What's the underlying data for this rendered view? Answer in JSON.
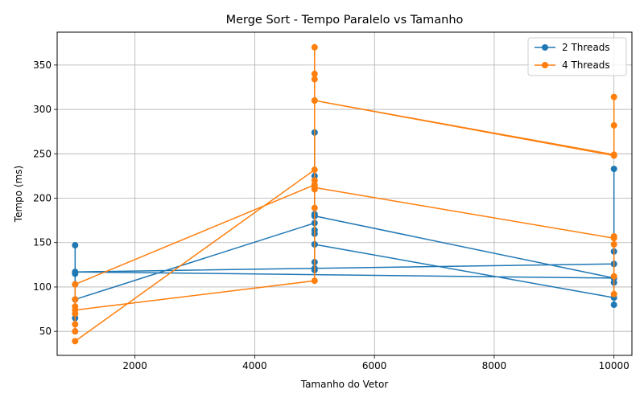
{
  "chart_data": {
    "type": "line",
    "title": "Merge Sort - Tempo Paralelo vs Tamanho",
    "xlabel": "Tamanho do Vetor",
    "ylabel": "Tempo (ms)",
    "xlim": [
      700,
      10300
    ],
    "ylim": [
      23,
      387
    ],
    "xticks": [
      2000,
      4000,
      6000,
      8000,
      10000
    ],
    "yticks": [
      50,
      100,
      150,
      200,
      250,
      300,
      350
    ],
    "grid": true,
    "legend_position": "top-right",
    "series": [
      {
        "name": "2 Threads",
        "color": "#1f77b4",
        "points": [
          [
            1000,
            147
          ],
          [
            1000,
            115
          ],
          [
            1000,
            103
          ],
          [
            1000,
            86
          ],
          [
            1000,
            65
          ],
          [
            1000,
            50
          ],
          [
            1000,
            86
          ],
          [
            5000,
            172
          ],
          [
            5000,
            180
          ],
          [
            5000,
            274
          ],
          [
            5000,
            225
          ],
          [
            5000,
            182
          ],
          [
            5000,
            164
          ],
          [
            5000,
            160
          ],
          [
            5000,
            148
          ],
          [
            5000,
            128
          ],
          [
            5000,
            119
          ],
          [
            5000,
            148
          ],
          [
            10000,
            88
          ],
          [
            10000,
            80
          ],
          [
            10000,
            233
          ],
          [
            10000,
            140
          ],
          [
            10000,
            105
          ],
          [
            10000,
            110
          ],
          [
            1000,
            117
          ],
          [
            5000,
            121
          ],
          [
            10000,
            126
          ],
          [
            10000,
            110
          ],
          [
            5000,
            180
          ]
        ]
      },
      {
        "name": "4 Threads",
        "color": "#ff7f0e",
        "points": [
          [
            1000,
            39
          ],
          [
            5000,
            232
          ],
          [
            5000,
            189
          ],
          [
            5000,
            215
          ],
          [
            1000,
            103
          ],
          [
            1000,
            86
          ],
          [
            1000,
            78
          ],
          [
            1000,
            70
          ],
          [
            1000,
            58
          ],
          [
            1000,
            50
          ],
          [
            1000,
            74
          ],
          [
            5000,
            107
          ],
          [
            5000,
            370
          ],
          [
            5000,
            340
          ],
          [
            5000,
            334
          ],
          [
            5000,
            310
          ],
          [
            10000,
            248
          ],
          [
            10000,
            314
          ],
          [
            10000,
            282
          ],
          [
            10000,
            249
          ],
          [
            5000,
            310
          ],
          [
            5000,
            220
          ],
          [
            5000,
            210
          ],
          [
            5000,
            212
          ],
          [
            10000,
            155
          ],
          [
            10000,
            157
          ],
          [
            10000,
            148
          ],
          [
            10000,
            112
          ],
          [
            10000,
            92
          ]
        ]
      }
    ]
  }
}
